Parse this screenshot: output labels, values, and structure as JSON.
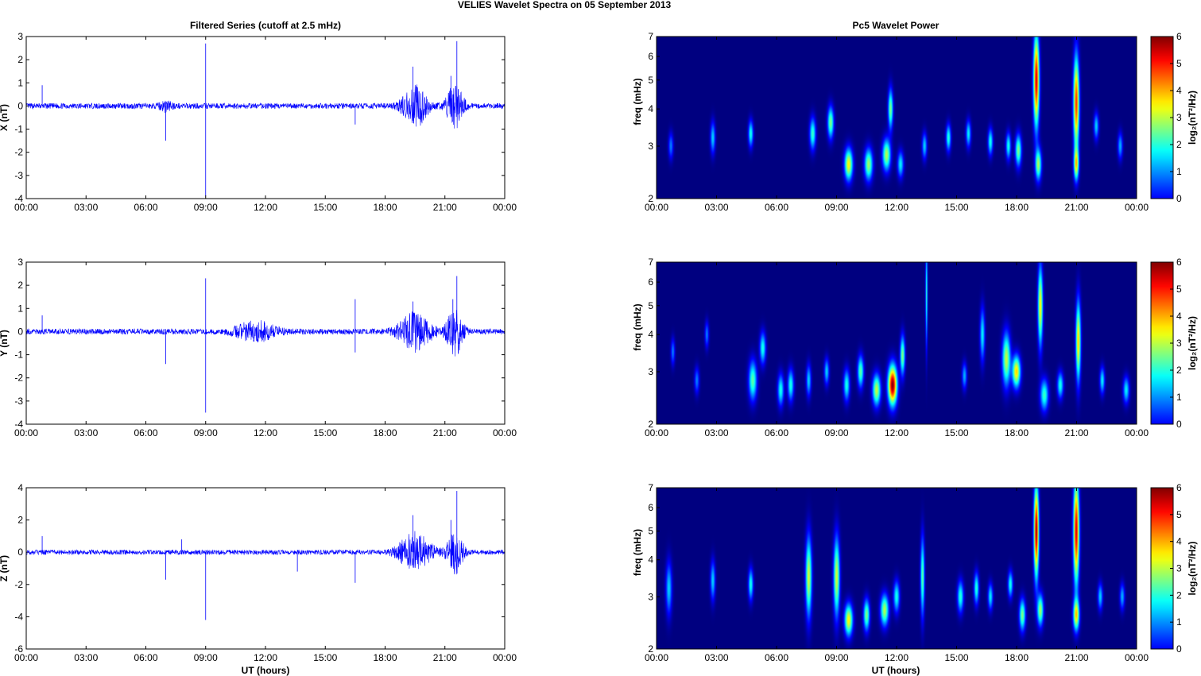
{
  "figure": {
    "title": "VELIES Wavelet Spectra on 05 September 2013",
    "left_title": "Filtered Series (cutoff at 2.5 mHz)",
    "right_title": "Pc5 Wavelet Power",
    "xlabel": "UT (hours)",
    "colorbar_label": "log₂(nT²/Hz)"
  },
  "x_ticks": [
    "00:00",
    "03:00",
    "06:00",
    "09:00",
    "12:00",
    "15:00",
    "18:00",
    "21:00",
    "00:00"
  ],
  "colors": {
    "series": "#0000ff",
    "colormap": "jet",
    "background": "#00008f"
  },
  "chart_data": [
    {
      "type": "line",
      "name": "x-series",
      "ylabel": "X (nT)",
      "xlim": [
        0,
        24
      ],
      "ylim": [
        -4,
        3
      ],
      "yticks": [
        3,
        2,
        1,
        0,
        -1,
        -2,
        -3,
        -4
      ],
      "noise": 0.12,
      "bursts": [
        [
          19.5,
          0.6,
          0.9
        ],
        [
          21.5,
          0.4,
          1.0
        ],
        [
          7.0,
          0.3,
          0.2
        ]
      ],
      "spikes": [
        [
          0.8,
          0.9
        ],
        [
          7.0,
          -1.5
        ],
        [
          9.0,
          2.7
        ],
        [
          9.0,
          -3.9
        ],
        [
          19.4,
          1.7
        ],
        [
          21.3,
          1.3
        ],
        [
          21.6,
          2.8
        ],
        [
          16.5,
          -0.8
        ]
      ]
    },
    {
      "type": "line",
      "name": "y-series",
      "ylabel": "Y (nT)",
      "xlim": [
        0,
        24
      ],
      "ylim": [
        -4,
        3
      ],
      "yticks": [
        3,
        2,
        1,
        0,
        -1,
        -2,
        -3,
        -4
      ],
      "noise": 0.12,
      "bursts": [
        [
          11.5,
          1.0,
          0.4
        ],
        [
          19.5,
          0.8,
          0.8
        ],
        [
          21.5,
          0.4,
          1.0
        ]
      ],
      "spikes": [
        [
          0.8,
          0.7
        ],
        [
          7.0,
          -1.4
        ],
        [
          9.0,
          2.3
        ],
        [
          9.0,
          -3.5
        ],
        [
          16.5,
          1.4
        ],
        [
          16.5,
          -0.9
        ],
        [
          19.4,
          1.3
        ],
        [
          21.4,
          1.4
        ],
        [
          21.6,
          2.4
        ]
      ]
    },
    {
      "type": "line",
      "name": "z-series",
      "ylabel": "Z (nT)",
      "xlim": [
        0,
        24
      ],
      "ylim": [
        -6,
        4
      ],
      "yticks": [
        4,
        2,
        0,
        -2,
        -4,
        -6
      ],
      "noise": 0.15,
      "bursts": [
        [
          19.5,
          0.8,
          1.2
        ],
        [
          21.5,
          0.4,
          1.3
        ]
      ],
      "spikes": [
        [
          0.8,
          1.0
        ],
        [
          7.0,
          -1.7
        ],
        [
          7.8,
          0.8
        ],
        [
          9.0,
          -4.2
        ],
        [
          13.6,
          -1.2
        ],
        [
          16.5,
          -1.9
        ],
        [
          19.4,
          2.3
        ],
        [
          21.3,
          2.0
        ],
        [
          21.6,
          3.8
        ]
      ]
    },
    {
      "type": "heatmap",
      "name": "x-wavelet",
      "ylabel": "freq (mHz)",
      "xlim": [
        0,
        24
      ],
      "ylim": [
        2,
        7
      ],
      "yscale": "log",
      "yticks": [
        7,
        6,
        5,
        4,
        3,
        2
      ],
      "clim": [
        0,
        6
      ],
      "colorbar_ticks": [
        6,
        5,
        4,
        3,
        2,
        1,
        0
      ],
      "blobs": [
        [
          0.7,
          3.0,
          0.12,
          0.1,
          1.5
        ],
        [
          2.8,
          3.2,
          0.12,
          0.12,
          2.0
        ],
        [
          4.7,
          3.3,
          0.12,
          0.1,
          2.4
        ],
        [
          7.8,
          3.3,
          0.15,
          0.12,
          2.6
        ],
        [
          8.7,
          3.6,
          0.15,
          0.12,
          3.0
        ],
        [
          9.6,
          2.6,
          0.2,
          0.12,
          3.8
        ],
        [
          10.6,
          2.6,
          0.2,
          0.12,
          3.2
        ],
        [
          11.5,
          2.8,
          0.2,
          0.12,
          3.3
        ],
        [
          11.7,
          4.0,
          0.12,
          0.15,
          3.0
        ],
        [
          12.2,
          2.6,
          0.15,
          0.1,
          2.2
        ],
        [
          13.4,
          3.0,
          0.12,
          0.1,
          2.0
        ],
        [
          14.6,
          3.2,
          0.12,
          0.1,
          2.5
        ],
        [
          15.6,
          3.3,
          0.12,
          0.1,
          2.2
        ],
        [
          16.7,
          3.1,
          0.12,
          0.1,
          2.4
        ],
        [
          17.6,
          3.0,
          0.12,
          0.1,
          2.4
        ],
        [
          18.1,
          2.9,
          0.15,
          0.12,
          3.0
        ],
        [
          19.0,
          5.0,
          0.14,
          0.35,
          5.5
        ],
        [
          19.1,
          2.6,
          0.15,
          0.12,
          3.2
        ],
        [
          21.0,
          4.2,
          0.14,
          0.35,
          5.0
        ],
        [
          21.0,
          2.6,
          0.12,
          0.12,
          3.5
        ],
        [
          22.0,
          3.5,
          0.12,
          0.1,
          2.0
        ],
        [
          23.2,
          3.0,
          0.12,
          0.1,
          1.8
        ]
      ]
    },
    {
      "type": "heatmap",
      "name": "y-wavelet",
      "ylabel": "freq (mHz)",
      "xlim": [
        0,
        24
      ],
      "ylim": [
        2,
        7
      ],
      "yscale": "log",
      "yticks": [
        7,
        6,
        5,
        4,
        3,
        2
      ],
      "clim": [
        0,
        6
      ],
      "colorbar_ticks": [
        6,
        5,
        4,
        3,
        2,
        1,
        0
      ],
      "blobs": [
        [
          0.8,
          3.5,
          0.1,
          0.1,
          1.5
        ],
        [
          2.0,
          2.8,
          0.12,
          0.1,
          1.5
        ],
        [
          2.5,
          4.0,
          0.1,
          0.1,
          1.5
        ],
        [
          4.8,
          2.8,
          0.2,
          0.15,
          2.8
        ],
        [
          5.3,
          3.6,
          0.15,
          0.12,
          2.4
        ],
        [
          6.2,
          2.6,
          0.15,
          0.12,
          2.4
        ],
        [
          6.7,
          2.7,
          0.15,
          0.12,
          2.4
        ],
        [
          7.6,
          2.8,
          0.12,
          0.12,
          2.0
        ],
        [
          8.5,
          3.0,
          0.12,
          0.1,
          2.0
        ],
        [
          9.5,
          2.7,
          0.15,
          0.12,
          2.4
        ],
        [
          10.2,
          3.0,
          0.15,
          0.12,
          2.8
        ],
        [
          11.0,
          2.6,
          0.2,
          0.12,
          3.4
        ],
        [
          11.8,
          2.7,
          0.22,
          0.15,
          6.0
        ],
        [
          12.3,
          3.4,
          0.12,
          0.15,
          3.0
        ],
        [
          13.5,
          5.5,
          0.05,
          0.4,
          2.5
        ],
        [
          15.4,
          2.9,
          0.12,
          0.1,
          1.8
        ],
        [
          16.3,
          4.0,
          0.12,
          0.2,
          2.2
        ],
        [
          17.5,
          3.3,
          0.2,
          0.2,
          3.4
        ],
        [
          18.0,
          3.0,
          0.2,
          0.12,
          4.0
        ],
        [
          19.2,
          5.0,
          0.12,
          0.3,
          3.8
        ],
        [
          19.4,
          2.5,
          0.2,
          0.12,
          2.6
        ],
        [
          20.2,
          2.7,
          0.15,
          0.1,
          2.4
        ],
        [
          21.1,
          3.8,
          0.12,
          0.3,
          4.0
        ],
        [
          22.3,
          2.8,
          0.12,
          0.1,
          2.2
        ],
        [
          23.5,
          2.6,
          0.15,
          0.1,
          2.2
        ]
      ]
    },
    {
      "type": "heatmap",
      "name": "z-wavelet",
      "ylabel": "freq (mHz)",
      "xlim": [
        0,
        24
      ],
      "ylim": [
        2,
        7
      ],
      "yscale": "log",
      "yticks": [
        7,
        6,
        5,
        4,
        3,
        2
      ],
      "clim": [
        0,
        6
      ],
      "colorbar_ticks": [
        6,
        5,
        4,
        3,
        2,
        1,
        0
      ],
      "blobs": [
        [
          0.6,
          3.2,
          0.15,
          0.2,
          2.0
        ],
        [
          2.8,
          3.4,
          0.12,
          0.15,
          2.0
        ],
        [
          4.7,
          3.3,
          0.12,
          0.12,
          2.4
        ],
        [
          7.6,
          3.5,
          0.15,
          0.3,
          3.5
        ],
        [
          9.0,
          3.5,
          0.15,
          0.3,
          3.5
        ],
        [
          9.6,
          2.5,
          0.2,
          0.12,
          3.8
        ],
        [
          10.5,
          2.6,
          0.15,
          0.12,
          3.0
        ],
        [
          11.4,
          2.7,
          0.2,
          0.12,
          3.3
        ],
        [
          12.0,
          3.0,
          0.15,
          0.12,
          2.4
        ],
        [
          13.3,
          3.5,
          0.1,
          0.3,
          2.8
        ],
        [
          15.2,
          3.0,
          0.15,
          0.12,
          2.5
        ],
        [
          16.0,
          3.2,
          0.12,
          0.12,
          2.5
        ],
        [
          16.7,
          3.0,
          0.12,
          0.1,
          2.2
        ],
        [
          17.7,
          3.3,
          0.12,
          0.1,
          2.4
        ],
        [
          18.3,
          2.6,
          0.15,
          0.12,
          3.0
        ],
        [
          19.0,
          5.0,
          0.12,
          0.35,
          5.8
        ],
        [
          19.2,
          2.7,
          0.15,
          0.12,
          3.2
        ],
        [
          21.0,
          5.0,
          0.14,
          0.4,
          5.5
        ],
        [
          21.0,
          2.6,
          0.15,
          0.12,
          3.8
        ],
        [
          22.2,
          3.0,
          0.12,
          0.1,
          2.0
        ],
        [
          23.3,
          3.0,
          0.12,
          0.1,
          1.8
        ]
      ]
    }
  ]
}
